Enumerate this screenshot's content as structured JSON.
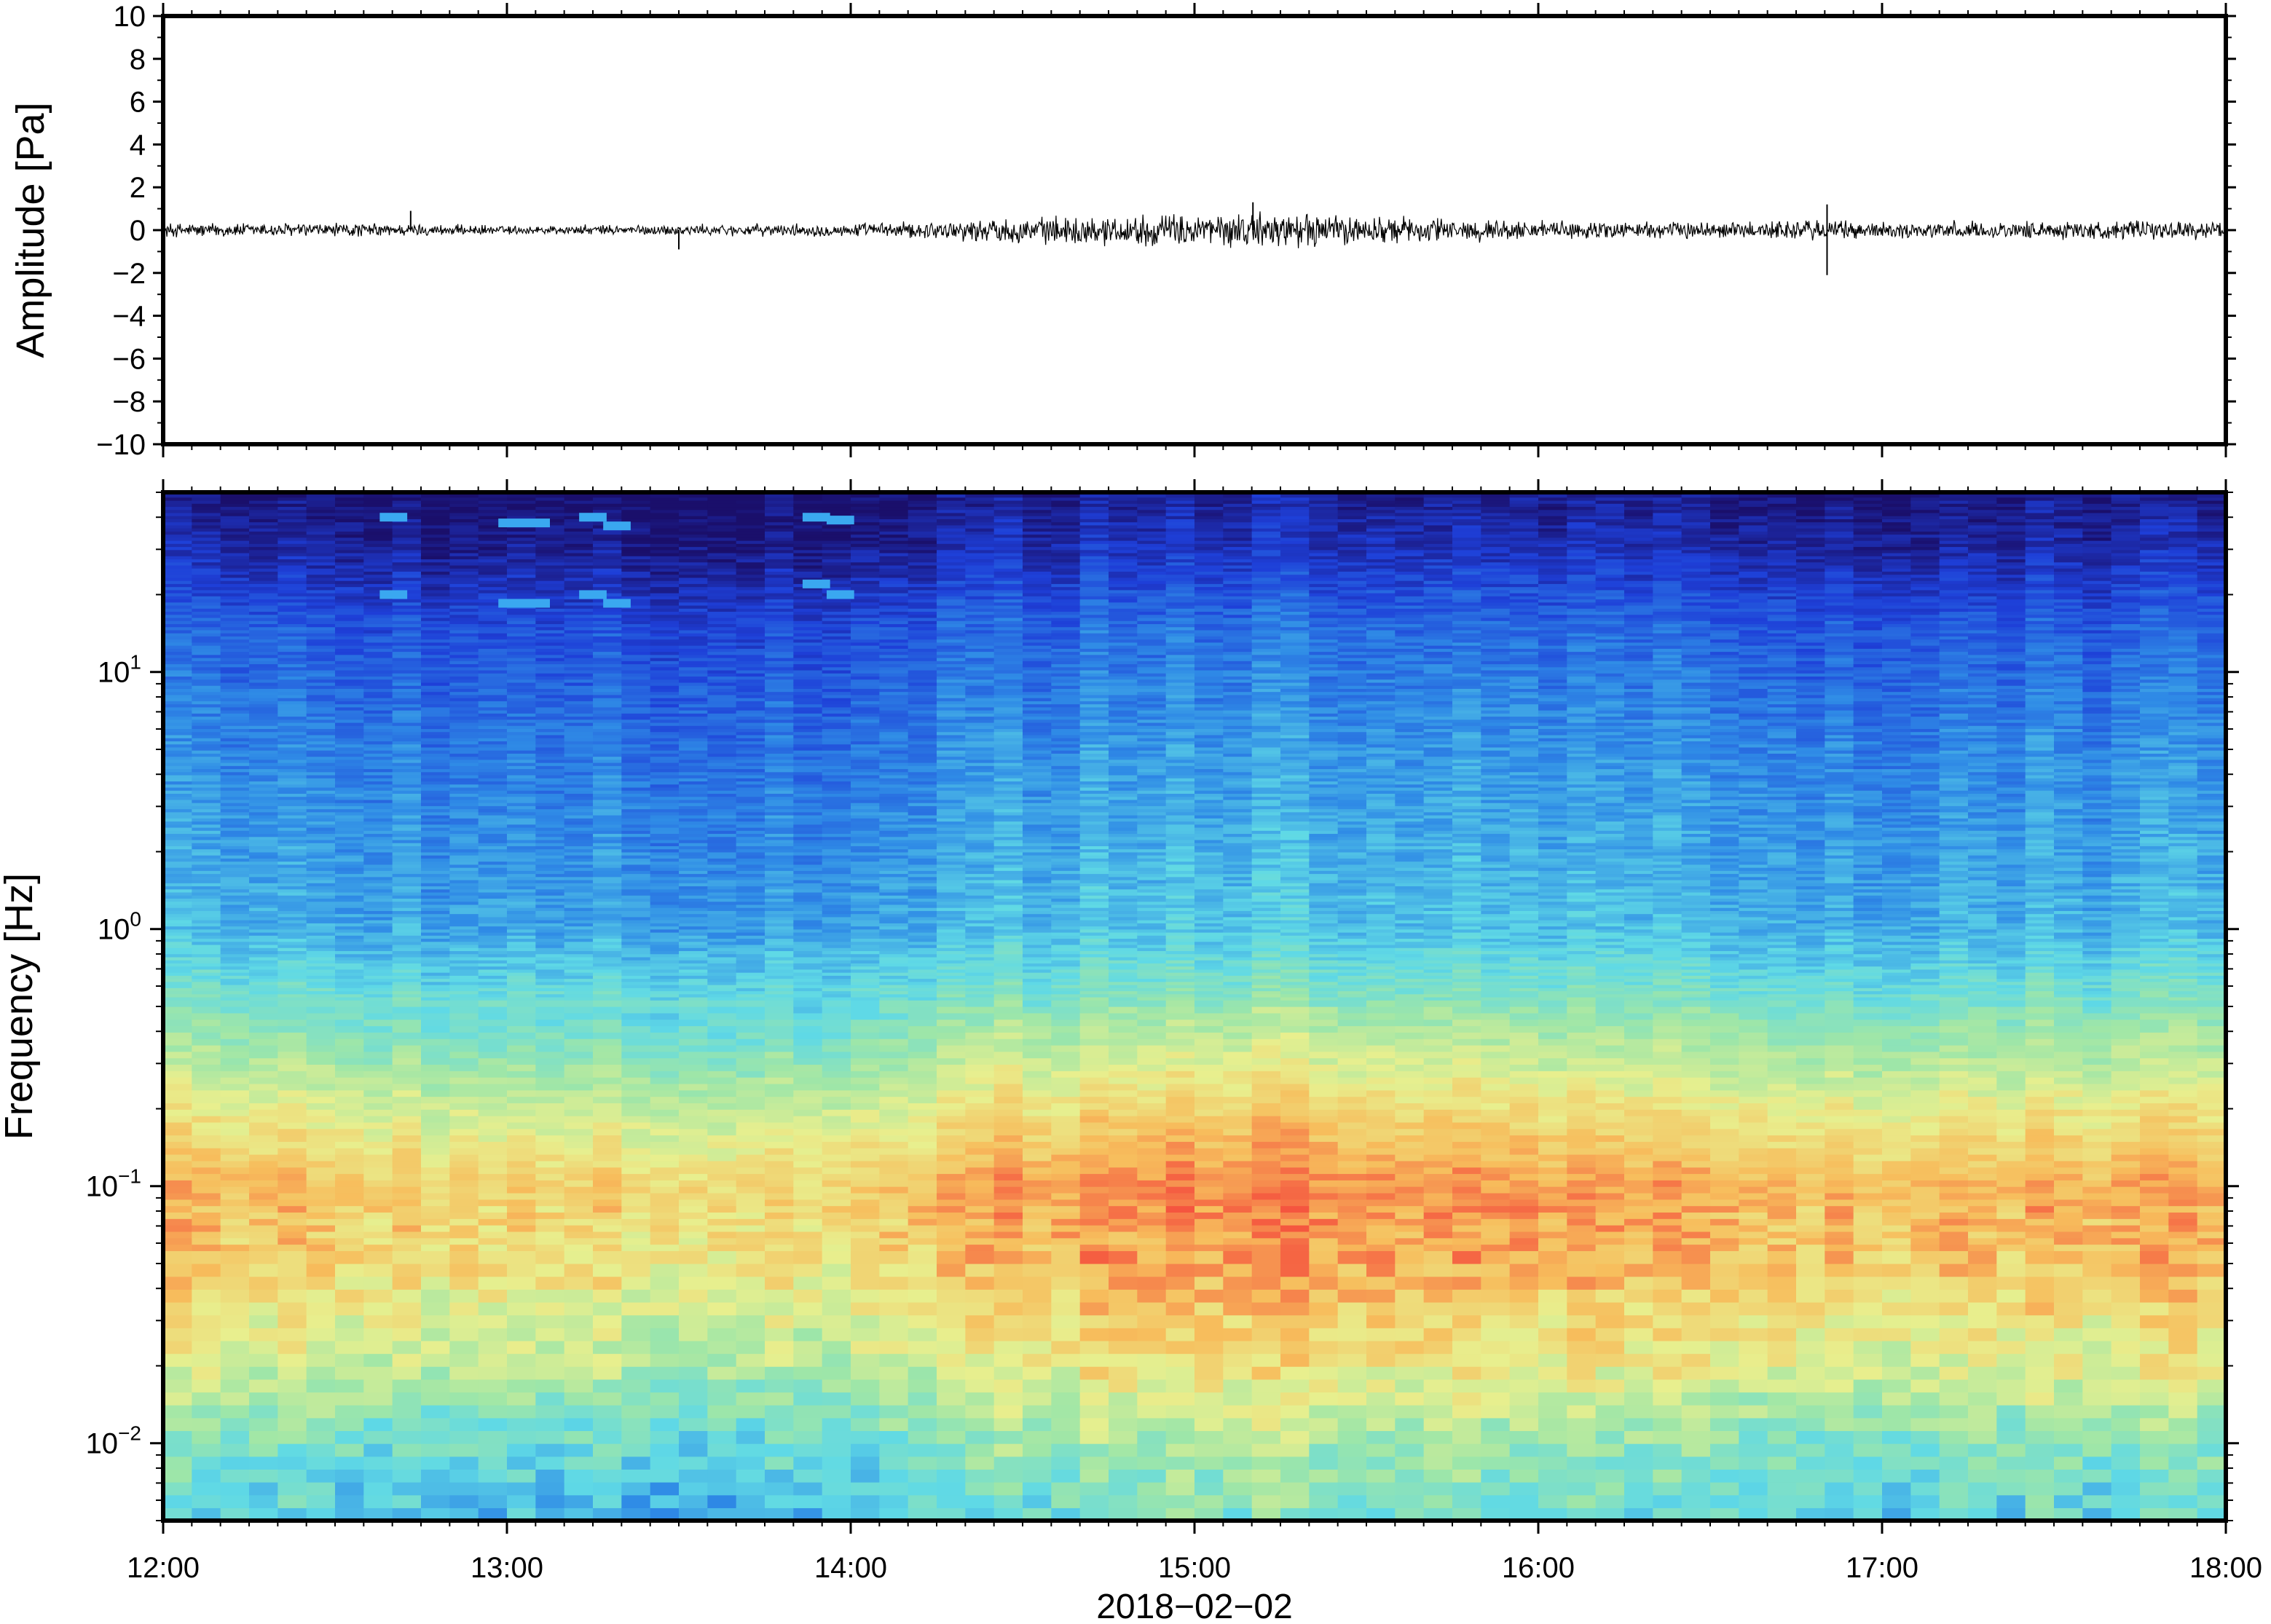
{
  "chart_data": [
    {
      "type": "line",
      "panel": "waveform",
      "ylabel": "Amplitude [Pa]",
      "ylim": [
        -10,
        10
      ],
      "y_ticks": [
        10,
        8,
        6,
        4,
        2,
        0,
        -2,
        -4,
        -6,
        -8,
        -10
      ],
      "y_tick_labels": [
        "10",
        "8",
        "6",
        "4",
        "2",
        "0",
        "−2",
        "−4",
        "−6",
        "−8",
        "−10"
      ],
      "x_range": [
        "12:00",
        "18:00"
      ],
      "series": [
        {
          "color": "#000000",
          "x_hours": [
            12.0,
            12.5,
            13.0,
            13.5,
            14.0,
            14.25,
            14.5,
            15.0,
            15.25,
            15.5,
            16.0,
            16.5,
            16.8,
            17.0,
            17.5,
            18.0
          ],
          "envelope_pa": [
            0.4,
            0.4,
            0.25,
            0.3,
            0.35,
            0.5,
            0.7,
            0.9,
            1.0,
            0.8,
            0.5,
            0.45,
            0.6,
            0.45,
            0.5,
            0.5
          ],
          "spikes": [
            {
              "x_hours": 12.72,
              "peak_pa": 0.9
            },
            {
              "x_hours": 13.5,
              "peak_pa": -0.9
            },
            {
              "x_hours": 15.17,
              "peak_pa": 1.3
            },
            {
              "x_hours": 16.84,
              "peak_pa": -2.1
            },
            {
              "x_hours": 16.84,
              "peak_pa": 1.2
            }
          ]
        }
      ],
      "grid": false,
      "line_color": "#000000"
    },
    {
      "type": "heatmap",
      "panel": "spectrogram",
      "ylabel": "Frequency [Hz]",
      "yscale": "log",
      "ylim": [
        0.005,
        50
      ],
      "y_ticks": [
        0.01,
        0.1,
        1,
        10
      ],
      "y_tick_labels": [
        {
          "base": "10",
          "exp": "−2"
        },
        {
          "base": "10",
          "exp": "−1"
        },
        {
          "base": "10",
          "exp": "0"
        },
        {
          "base": "10",
          "exp": "1"
        }
      ],
      "x_ticks": [
        "12:00",
        "13:00",
        "14:00",
        "15:00",
        "16:00",
        "17:00",
        "18:00"
      ],
      "xlabel": "2018−02−02",
      "colormap": "spectral (blue → cyan → green → yellow → orange → red)",
      "colormap_stops": [
        "#1a0f6b",
        "#1e3fd8",
        "#2f8be6",
        "#5fd9e6",
        "#9ee6a8",
        "#e8ef8e",
        "#f7bd5c",
        "#f5553f"
      ],
      "power_profile": [
        {
          "freq_hz": 50,
          "level": 0.02
        },
        {
          "freq_hz": 30,
          "level": 0.08
        },
        {
          "freq_hz": 15,
          "level": 0.2
        },
        {
          "freq_hz": 5,
          "level": 0.28
        },
        {
          "freq_hz": 1,
          "level": 0.36
        },
        {
          "freq_hz": 0.4,
          "level": 0.55
        },
        {
          "freq_hz": 0.2,
          "level": 0.72
        },
        {
          "freq_hz": 0.1,
          "level": 0.86
        },
        {
          "freq_hz": 0.05,
          "level": 0.82
        },
        {
          "freq_hz": 0.02,
          "level": 0.68
        },
        {
          "freq_hz": 0.01,
          "level": 0.52
        },
        {
          "freq_hz": 0.005,
          "level": 0.42
        }
      ],
      "time_activity": [
        {
          "x_hours": 12.0,
          "boost": 0.0
        },
        {
          "x_hours": 13.0,
          "boost": -0.05
        },
        {
          "x_hours": 13.8,
          "boost": -0.06
        },
        {
          "x_hours": 14.5,
          "boost": 0.04
        },
        {
          "x_hours": 15.2,
          "boost": 0.08
        },
        {
          "x_hours": 16.0,
          "boost": 0.03
        },
        {
          "x_hours": 17.0,
          "boost": 0.0
        },
        {
          "x_hours": 18.0,
          "boost": 0.02
        }
      ],
      "tonal_lines": [
        {
          "x_hours": 12.67,
          "freq_hz": 20,
          "width_hours": 0.08
        },
        {
          "x_hours": 12.67,
          "freq_hz": 40,
          "width_hours": 0.08
        },
        {
          "x_hours": 13.05,
          "freq_hz": 18.5,
          "width_hours": 0.15
        },
        {
          "x_hours": 13.05,
          "freq_hz": 38,
          "width_hours": 0.15
        },
        {
          "x_hours": 13.25,
          "freq_hz": 20,
          "width_hours": 0.08
        },
        {
          "x_hours": 13.32,
          "freq_hz": 18.5,
          "width_hours": 0.08
        },
        {
          "x_hours": 13.25,
          "freq_hz": 40,
          "width_hours": 0.08
        },
        {
          "x_hours": 13.32,
          "freq_hz": 37,
          "width_hours": 0.08
        },
        {
          "x_hours": 13.9,
          "freq_hz": 22,
          "width_hours": 0.08
        },
        {
          "x_hours": 13.97,
          "freq_hz": 20,
          "width_hours": 0.08
        },
        {
          "x_hours": 13.9,
          "freq_hz": 40,
          "width_hours": 0.08
        },
        {
          "x_hours": 13.97,
          "freq_hz": 39,
          "width_hours": 0.08
        }
      ],
      "grid": false
    }
  ]
}
